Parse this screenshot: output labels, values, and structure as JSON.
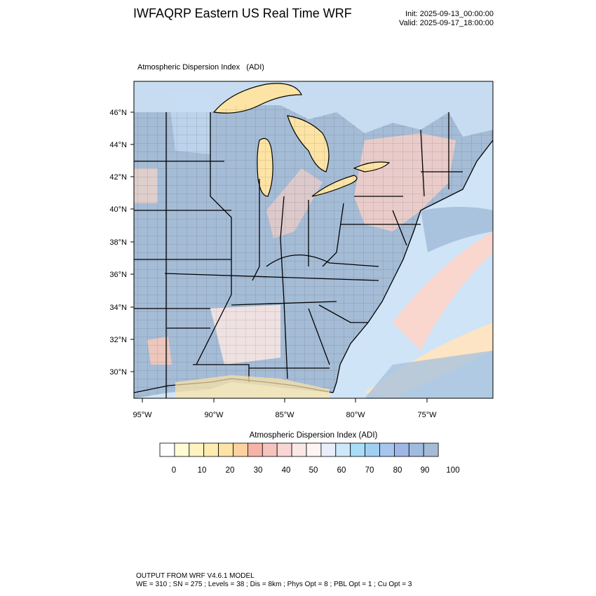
{
  "header": {
    "title": "IWFAQRP Eastern US Real Time WRF",
    "init": "Init: 2025-09-13_00:00:00",
    "valid": "Valid: 2025-09-17_18:00:00"
  },
  "plot": {
    "title": "Atmospheric Dispersion Index   (ADI)",
    "lat_labels": [
      "46°N",
      "44°N",
      "42°N",
      "40°N",
      "38°N",
      "36°N",
      "34°N",
      "32°N",
      "30°N"
    ],
    "lon_labels": [
      "95°W",
      "90°W",
      "85°W",
      "80°W",
      "75°W"
    ]
  },
  "colorbar": {
    "title": "Atmospheric Dispersion Index  (ADI)",
    "tick_labels": [
      "0",
      "10",
      "20",
      "30",
      "40",
      "50",
      "60",
      "70",
      "80",
      "90",
      "100"
    ],
    "colors": [
      "#ffffff",
      "#fffbd6",
      "#fff3c0",
      "#ffedb0",
      "#ffe2a6",
      "#fdd2a0",
      "#f6b4a6",
      "#f6c4bf",
      "#f8d6d3",
      "#fae8e6",
      "#fdf4f3",
      "#e8eefa",
      "#cde7fb",
      "#a8dcf7",
      "#9fd0f3",
      "#a6c6ef",
      "#9fb6e6",
      "#9fbbe0",
      "#a5bcd7"
    ]
  },
  "colors": {
    "ocean": "#a9c3de",
    "land": "#a5bcd6",
    "lake": "#fde4a4",
    "warm": "#f6c8c0",
    "light": "#cfe4f6"
  },
  "footer": {
    "line1": "OUTPUT FROM WRF V4.6.1 MODEL",
    "line2": "WE = 310 ; SN = 275 ; Levels = 38 ; Dis = 8km ; Phys Opt = 8 ; PBL Opt = 1 ; Cu Opt = 3"
  }
}
